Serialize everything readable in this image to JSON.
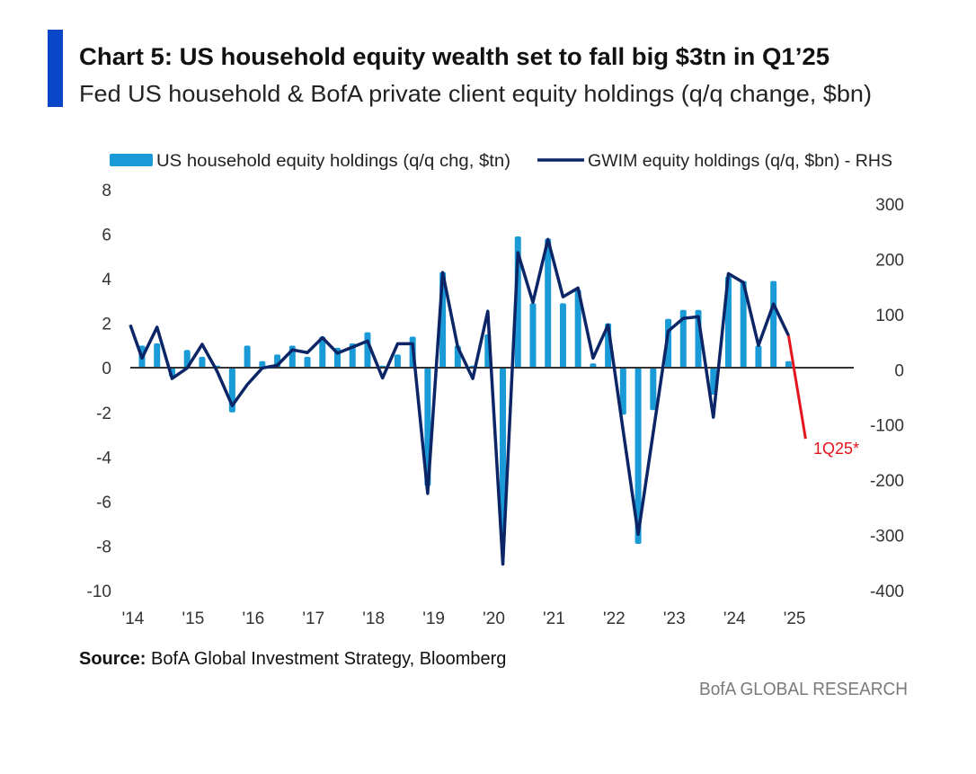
{
  "header": {
    "title": "Chart 5: US household equity wealth set to fall big $3tn in Q1’25",
    "subtitle": "Fed US household & BofA private client equity holdings (q/q change, $bn)"
  },
  "footer": {
    "source_label": "Source:",
    "source_text": " BofA Global Investment Strategy, Bloomberg",
    "brand": "BofA GLOBAL RESEARCH"
  },
  "colors": {
    "accent_bar": "#0a47c8",
    "bars": "#1b9ad8",
    "line": "#0b2566",
    "forecast": "#e3141b",
    "zero_line": "#333333"
  },
  "chart_data": {
    "type": "bar+line",
    "title": "Chart 5: US household equity wealth set to fall big $3tn in Q1’25",
    "legend_position": "top",
    "legend": [
      "US household equity holdings (q/q chg, $tn)",
      "GWIM equity holdings (q/q, $bn) - RHS"
    ],
    "x_tick_labels": [
      "'14",
      "'15",
      "'16",
      "'17",
      "'18",
      "'19",
      "'20",
      "'21",
      "'22",
      "'23",
      "'24",
      "'25"
    ],
    "left_axis": {
      "ylim": [
        -10,
        8
      ],
      "ticks": [
        "8",
        "6",
        "4",
        "2",
        "0",
        "-2",
        "-4",
        "-6",
        "-8",
        "-10"
      ]
    },
    "right_axis": {
      "ylim": [
        -400,
        300
      ],
      "ticks": [
        "300",
        "200",
        "100",
        "0",
        "-100",
        "-200",
        "-300",
        "-400"
      ]
    },
    "series": [
      {
        "name": "US household equity holdings (q/q chg, $tn)",
        "type": "bar",
        "axis": "left",
        "start_quarter": "2014Q1",
        "values": [
          1.0,
          1.1,
          -0.4,
          0.8,
          0.5,
          0.1,
          -2.0,
          1.0,
          0.3,
          0.6,
          1.0,
          0.5,
          1.4,
          0.9,
          1.1,
          1.6,
          0.1,
          0.6,
          1.4,
          -5.3,
          4.3,
          1.0,
          0.1,
          1.5,
          -7.5,
          5.9,
          2.9,
          5.8,
          2.9,
          3.5,
          0.2,
          2.0,
          -2.1,
          -7.9,
          -1.9,
          2.2,
          2.6,
          2.6,
          -1.2,
          4.1,
          3.9,
          1.0,
          3.9,
          0.3
        ]
      },
      {
        "name": "GWIM equity holdings (q/q, $bn) - RHS",
        "type": "line",
        "axis": "right",
        "start_quarter": "2013Q4",
        "values": [
          81,
          21,
          77,
          -16,
          3,
          46,
          -3,
          -65,
          -27,
          3,
          8,
          36,
          31,
          58,
          30,
          41,
          52,
          -15,
          47,
          47,
          -224,
          176,
          41,
          -16,
          106,
          -352,
          212,
          122,
          236,
          132,
          148,
          21,
          81,
          -110,
          -298,
          -114,
          70,
          93,
          96,
          -86,
          174,
          158,
          44,
          119,
          62
        ]
      },
      {
        "name": "1Q25*",
        "type": "line",
        "axis": "right",
        "note": "forecast",
        "from_value": 62,
        "value": -125
      }
    ],
    "annotation": "1Q25*"
  }
}
